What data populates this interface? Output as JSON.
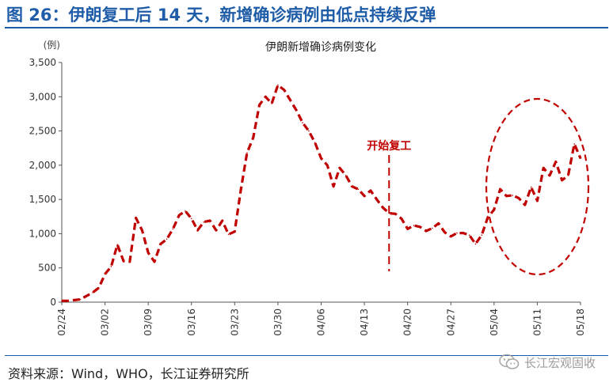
{
  "figure_title": "图 26：伊朗复工后 14 天，新增确诊病例由低点持续反弹",
  "source_text": "资料来源：Wind，WHO，长江证券研究所",
  "watermark_text": "长江宏观固收",
  "colors": {
    "title_blue": "#1f5da8",
    "series_red": "#c00000",
    "axis": "#555555"
  },
  "chart_data": {
    "type": "line",
    "title": "伊朗新增确诊病例变化",
    "unit_label": "(例)",
    "xlabel": "",
    "ylabel": "",
    "ylim": [
      0,
      3500
    ],
    "yticks": [
      0,
      500,
      1000,
      1500,
      2000,
      2500,
      3000,
      3500
    ],
    "ytick_labels": [
      "0",
      "500",
      "1,000",
      "1,500",
      "2,000",
      "2,500",
      "3,000",
      "3,500"
    ],
    "xtick_labels": [
      "02/24",
      "03/02",
      "03/09",
      "03/16",
      "03/23",
      "03/30",
      "04/06",
      "04/13",
      "04/20",
      "04/27",
      "05/04",
      "05/11",
      "05/18"
    ],
    "x_start": "02/24",
    "x_end": "05/19",
    "series_style": "dashed",
    "series": [
      {
        "name": "",
        "values": [
          20,
          20,
          30,
          40,
          90,
          140,
          210,
          410,
          520,
          840,
          600,
          590,
          1230,
          1050,
          720,
          590,
          850,
          920,
          1070,
          1270,
          1330,
          1220,
          1050,
          1170,
          1190,
          1050,
          1190,
          990,
          1030,
          1640,
          2180,
          2400,
          2880,
          3000,
          2900,
          3170,
          3100,
          2950,
          2800,
          2620,
          2500,
          2330,
          2100,
          2000,
          1690,
          1960,
          1850,
          1690,
          1650,
          1550,
          1630,
          1500,
          1380,
          1300,
          1290,
          1220,
          1070,
          1120,
          1100,
          1040,
          1080,
          1150,
          1020,
          960,
          1010,
          1010,
          980,
          850,
          980,
          1240,
          1350,
          1650,
          1550,
          1560,
          1520,
          1420,
          1680,
          1480,
          1960,
          1850,
          2050,
          1780,
          1850,
          2310,
          2100
        ]
      }
    ],
    "annotations": [
      {
        "text": "开始复工",
        "x": "04/18",
        "style": "vertical dashed line"
      },
      {
        "text": "",
        "x_from": "05/03",
        "x_to": "05/19",
        "style": "dashed ellipse highlighting rebound"
      }
    ],
    "grid": false,
    "legend": "none"
  }
}
